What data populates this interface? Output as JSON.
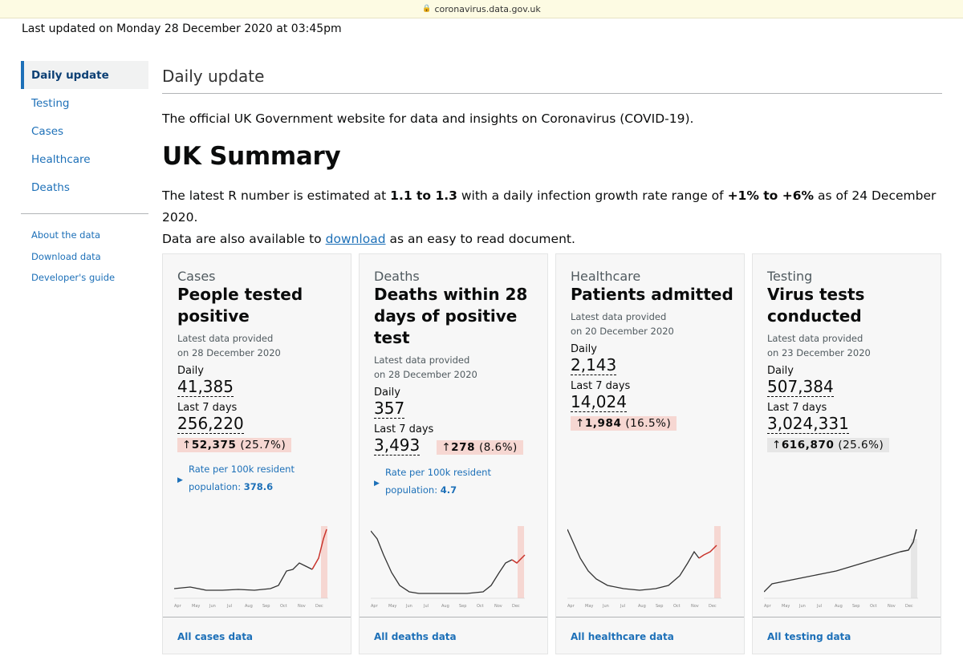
{
  "browser": {
    "url": "coronavirus.data.gov.uk"
  },
  "last_updated": "Last updated on Monday 28 December 2020 at 03:45pm",
  "sidebar": {
    "items": [
      {
        "label": "Daily update"
      },
      {
        "label": "Testing"
      },
      {
        "label": "Cases"
      },
      {
        "label": "Healthcare"
      },
      {
        "label": "Deaths"
      }
    ],
    "links": [
      {
        "label": "About the data"
      },
      {
        "label": "Download data"
      },
      {
        "label": "Developer's guide"
      }
    ]
  },
  "main": {
    "title": "Daily update",
    "intro": "The official UK Government website for data and insights on Coronavirus (COVID-19).",
    "heading": "UK Summary",
    "r_text": {
      "p1": "The latest R number is estimated at ",
      "r": "1.1 to 1.3",
      "p2": " with a daily infection growth rate range of ",
      "g": "+1% to +6%",
      "p3": " as of 24 December 2020.",
      "p4": "Data are also available to ",
      "link": "download",
      "p5": " as an easy to read document."
    }
  },
  "month_labels": [
    "Apr",
    "May",
    "Jun",
    "Jul",
    "Aug",
    "Sep",
    "Oct",
    "Nov",
    "Dec"
  ],
  "cards": [
    {
      "category": "Cases",
      "title": "People tested positive",
      "provided_1": "Latest data provided",
      "provided_2": "on 28 December 2020",
      "daily_label": "Daily",
      "daily": "41,385",
      "week_label": "Last 7 days",
      "week": "256,220",
      "change": "52,375",
      "change_pct": "(25.7%)",
      "change_dir": "up",
      "rate_1": "Rate per 100k resident",
      "rate_2": "population:",
      "rate_value": "378.6",
      "footer": "All cases data",
      "highlight": "#f6d7d2",
      "trend": "rising"
    },
    {
      "category": "Deaths",
      "title": "Deaths within 28 days of positive test",
      "provided_1": "Latest data provided",
      "provided_2": "on 28 December 2020",
      "daily_label": "Daily",
      "daily": "357",
      "week_label": "Last 7 days",
      "week": "3,493",
      "change": "278",
      "change_pct": "(8.6%)",
      "change_dir": "up",
      "rate_1": "Rate per 100k resident",
      "rate_2": "population:",
      "rate_value": "4.7",
      "footer": "All deaths data",
      "highlight": "#f6d7d2",
      "trend": "rising"
    },
    {
      "category": "Healthcare",
      "title": "Patients admitted",
      "provided_1": "Latest data provided",
      "provided_2": "on 20 December 2020",
      "daily_label": "Daily",
      "daily": "2,143",
      "week_label": "Last 7 days",
      "week": "14,024",
      "change": "1,984",
      "change_pct": "(16.5%)",
      "change_dir": "up",
      "footer": "All healthcare data",
      "highlight": "#f6d7d2",
      "trend": "rising"
    },
    {
      "category": "Testing",
      "title": "Virus tests conducted",
      "provided_1": "Latest data provided",
      "provided_2": "on 23 December 2020",
      "daily_label": "Daily",
      "daily": "507,384",
      "week_label": "Last 7 days",
      "week": "3,024,331",
      "change": "616,870",
      "change_pct": "(25.6%)",
      "change_dir": "up",
      "footer": "All testing data",
      "highlight": "#e6e6e6",
      "trend": "neutral"
    }
  ],
  "colors": {
    "link": "#1d70b8",
    "rising": "#c9332b",
    "neutral": "#333333"
  }
}
